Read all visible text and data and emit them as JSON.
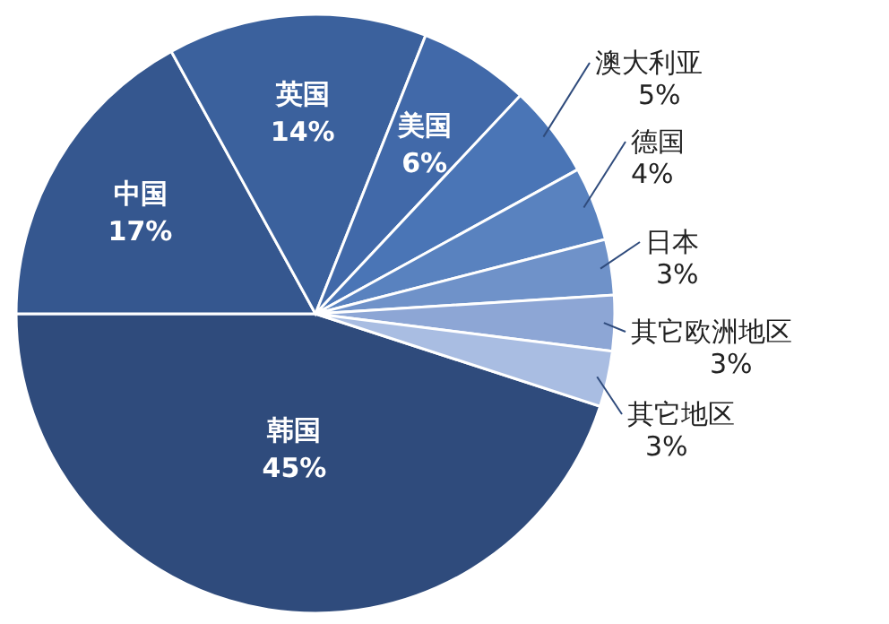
{
  "chart_data": {
    "type": "pie",
    "categories": [
      "韩国",
      "中国",
      "英国",
      "美国",
      "澳大利亚",
      "德国",
      "日本",
      "其它欧洲地区",
      "其它地区"
    ],
    "values": [
      45,
      17,
      14,
      6,
      5,
      4,
      3,
      3,
      3
    ],
    "colors": [
      "#2f4b7c",
      "#35578f",
      "#3b619d",
      "#4169a9",
      "#4a75b6",
      "#5982bf",
      "#6f92c9",
      "#8da6d5",
      "#a9bde2"
    ],
    "value_labels": [
      "45%",
      "17%",
      "14%",
      "6%",
      "5%",
      "4%",
      "3%",
      "3%",
      "3%"
    ]
  }
}
